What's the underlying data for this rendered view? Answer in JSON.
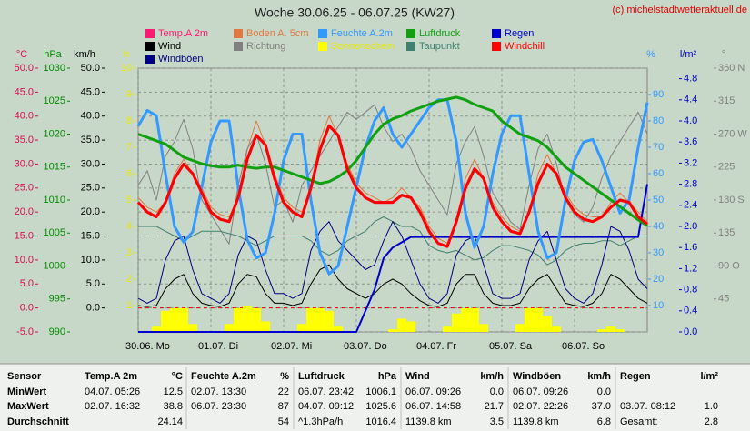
{
  "chart_data": {
    "type": "line",
    "title": "Woche 30.06.25 - 06.07.25 (KW27)",
    "credit": "(c) michelstadtwetteraktuell.de",
    "x": [
      0,
      3,
      6,
      9,
      12,
      15,
      18,
      21,
      24,
      27,
      30,
      33,
      36,
      39,
      42,
      45,
      48,
      51,
      54,
      57,
      60,
      63,
      66,
      69,
      72,
      75,
      78,
      81,
      84,
      87,
      90,
      93,
      96,
      99,
      102,
      105,
      108,
      111,
      114,
      117,
      120,
      123,
      126,
      129,
      132,
      135,
      138,
      141,
      144,
      147,
      150,
      153,
      156,
      159,
      162,
      165,
      168
    ],
    "xlim": [
      0,
      168
    ],
    "xticks": [
      {
        "value": 0,
        "label": "30.06. Mo"
      },
      {
        "value": 24,
        "label": "01.07. Di"
      },
      {
        "value": 48,
        "label": "02.07. Mi"
      },
      {
        "value": 72,
        "label": "03.07. Do"
      },
      {
        "value": 96,
        "label": "04.07. Fr"
      },
      {
        "value": 120,
        "label": "05.07. Sa"
      },
      {
        "value": 144,
        "label": "06.07. So"
      }
    ],
    "grid": true,
    "axes": [
      {
        "label": "°C",
        "color": "#d81050",
        "lim": [
          -5,
          50
        ],
        "ticks": [
          {
            "value": -5,
            "label": "-5.0"
          },
          {
            "value": 0,
            "label": "0.0"
          },
          {
            "value": 5,
            "label": "5.0"
          },
          {
            "value": 10,
            "label": "10.0"
          },
          {
            "value": 15,
            "label": "15.0"
          },
          {
            "value": 20,
            "label": "20.0"
          },
          {
            "value": 25,
            "label": "25.0"
          },
          {
            "value": 30,
            "label": "30.0"
          },
          {
            "value": 35,
            "label": "35.0"
          },
          {
            "value": 40,
            "label": "40.0"
          },
          {
            "value": 45,
            "label": "45.0"
          },
          {
            "value": 50,
            "label": "50.0"
          }
        ]
      },
      {
        "label": "hPa",
        "color": "#008c00",
        "lim": [
          990,
          1030
        ],
        "ticks": [
          990,
          995,
          1000,
          1005,
          1010,
          1015,
          1020,
          1025,
          1030
        ]
      },
      {
        "label": "km/h",
        "color": "#000000",
        "lim": [
          -5,
          50
        ],
        "ticks": [
          {
            "value": 0,
            "label": "0.0"
          },
          {
            "value": 5,
            "label": "5.0"
          },
          {
            "value": 10,
            "label": "10.0"
          },
          {
            "value": 15,
            "label": "15.0"
          },
          {
            "value": 20,
            "label": "20.0"
          },
          {
            "value": 25,
            "label": "25.0"
          },
          {
            "value": 30,
            "label": "30.0"
          },
          {
            "value": 35,
            "label": "35.0"
          },
          {
            "value": 40,
            "label": "40.0"
          },
          {
            "value": 45,
            "label": "45.0"
          },
          {
            "value": 50,
            "label": "50.0"
          }
        ]
      },
      {
        "label": "h",
        "color": "#e8e800",
        "lim": [
          0,
          10
        ],
        "ticks": [
          1,
          2,
          3,
          4,
          5,
          6,
          7,
          8,
          9,
          10
        ]
      },
      {
        "label": "%",
        "color": "#3399ff",
        "lim": [
          0,
          100
        ],
        "ticks": [
          10,
          20,
          30,
          40,
          50,
          60,
          70,
          80,
          90
        ]
      },
      {
        "label": "l/m²",
        "color": "#0000cc",
        "lim": [
          0,
          5
        ],
        "ticks": [
          {
            "value": 0,
            "label": "0.0"
          },
          0.4,
          0.8,
          1.2,
          1.6,
          {
            "value": 2,
            "label": "2.0"
          },
          2.4,
          2.8,
          3.2,
          3.6,
          {
            "value": 4,
            "label": "4.0"
          },
          4.4,
          4.8
        ]
      },
      {
        "label": "°",
        "color": "#808080",
        "lim": [
          0,
          360
        ],
        "ticks": [
          45,
          {
            "value": 90,
            "label": "90 O"
          },
          135,
          {
            "value": 180,
            "label": "180 S"
          },
          225,
          {
            "value": 270,
            "label": "270 W"
          },
          315,
          {
            "value": 360,
            "label": "360 N"
          }
        ]
      }
    ],
    "series": [
      {
        "name": "Temp.A 2m",
        "color": "#ff1a75",
        "axis": 0,
        "line_width": 3,
        "values": [
          22,
          20,
          19,
          22,
          27,
          30,
          28,
          24,
          20,
          18.5,
          18,
          23,
          31,
          36,
          34,
          27,
          22,
          20,
          19,
          25,
          33,
          38,
          36,
          29,
          25,
          23,
          22,
          22,
          22,
          23.5,
          23,
          20,
          16,
          13.5,
          12.8,
          18,
          25,
          29,
          27,
          21,
          18,
          16,
          15.5,
          20,
          26,
          30,
          28,
          23,
          20,
          18.5,
          18,
          19,
          21,
          22.5,
          22,
          19,
          17.5
        ]
      },
      {
        "name": "Boden A. 5cm",
        "color": "#e07840",
        "axis": 0,
        "line_width": 1,
        "values": [
          23,
          21,
          20,
          22,
          28,
          31,
          28,
          25,
          21,
          19.5,
          19,
          23,
          33,
          39,
          34,
          28,
          23,
          21,
          20,
          25,
          35,
          40,
          36,
          30,
          26,
          24,
          23,
          22,
          23,
          25,
          23,
          21,
          17,
          14.5,
          13.5,
          18,
          27,
          31,
          27,
          22,
          19,
          17,
          16,
          20,
          28,
          32,
          28,
          24,
          21,
          19.5,
          19,
          19,
          22,
          24,
          22,
          20,
          18
        ]
      },
      {
        "name": "Feuchte A.2m",
        "color": "#3399ff",
        "axis": 4,
        "line_width": 3,
        "values": [
          78,
          84,
          82,
          60,
          40,
          34,
          38,
          55,
          72,
          80,
          80,
          55,
          35,
          28,
          30,
          45,
          65,
          75,
          75,
          50,
          30,
          22,
          25,
          40,
          55,
          70,
          80,
          85,
          75,
          70,
          75,
          80,
          85,
          88,
          88,
          72,
          45,
          32,
          40,
          60,
          75,
          82,
          82,
          60,
          38,
          28,
          30,
          50,
          65,
          72,
          73,
          65,
          55,
          45,
          50,
          70,
          87
        ]
      },
      {
        "name": "Luftdruck",
        "color": "#10a010",
        "axis": 1,
        "line_width": 3,
        "values": [
          1020,
          1019.5,
          1019,
          1018.5,
          1017.5,
          1016.5,
          1016,
          1015.5,
          1015.2,
          1015,
          1015,
          1015.3,
          1015,
          1014.8,
          1015,
          1015,
          1014.5,
          1014,
          1013.5,
          1013,
          1012.5,
          1012.8,
          1013.5,
          1014.5,
          1016,
          1018,
          1020,
          1021.5,
          1022.3,
          1022.8,
          1023.5,
          1024,
          1024.5,
          1025,
          1025.3,
          1025.6,
          1025.2,
          1024.5,
          1024,
          1023.5,
          1022,
          1021,
          1020,
          1019.5,
          1019,
          1018,
          1016.5,
          1015,
          1014,
          1013,
          1012,
          1011,
          1010,
          1009,
          1008,
          1007,
          1006.1
        ]
      },
      {
        "name": "Regen",
        "color": "#0000cc",
        "axis": 5,
        "line_width": 2,
        "values": [
          0,
          0,
          0,
          0,
          0,
          0,
          0,
          0,
          0,
          0,
          0,
          0,
          0,
          0,
          0,
          0,
          0,
          0,
          0,
          0,
          0,
          0,
          0,
          0,
          0,
          0.4,
          0.8,
          1.4,
          1.6,
          1.7,
          1.8,
          1.8,
          1.8,
          1.8,
          1.8,
          1.8,
          1.8,
          1.8,
          1.8,
          1.8,
          1.8,
          1.8,
          1.8,
          1.8,
          1.8,
          1.8,
          1.8,
          1.8,
          1.8,
          1.8,
          1.8,
          1.8,
          1.8,
          1.8,
          1.8,
          1.8,
          2.8
        ]
      },
      {
        "name": "Wind",
        "color": "#000000",
        "axis": 2,
        "line_width": 1,
        "values": [
          0.5,
          0.3,
          0.5,
          4,
          6,
          7,
          3,
          1,
          0.5,
          0.3,
          1,
          5,
          7,
          6.5,
          3,
          1,
          1,
          0.5,
          1,
          5,
          8,
          9,
          6,
          4,
          3,
          2,
          3,
          5,
          6,
          5,
          3,
          1.5,
          0.5,
          0.3,
          1,
          5,
          7,
          7,
          3,
          1,
          0.5,
          0.5,
          1,
          4,
          6,
          7,
          4,
          1,
          0.5,
          0.3,
          1,
          3,
          7,
          6,
          4,
          2,
          1
        ]
      },
      {
        "name": "Richtung",
        "color": "#808080",
        "axis": 6,
        "line_width": 1,
        "values": [
          200,
          220,
          180,
          240,
          260,
          290,
          250,
          180,
          160,
          140,
          120,
          200,
          250,
          270,
          230,
          170,
          180,
          150,
          200,
          220,
          240,
          260,
          280,
          300,
          290,
          300,
          310,
          280,
          260,
          270,
          250,
          220,
          200,
          180,
          160,
          230,
          260,
          280,
          240,
          190,
          170,
          150,
          140,
          200,
          250,
          270,
          230,
          180,
          160,
          150,
          170,
          210,
          240,
          260,
          280,
          300,
          270
        ]
      },
      {
        "name": "Sonnenschein",
        "color": "#ffff00",
        "axis": 3,
        "mark": "bar",
        "values": [
          0,
          0,
          0.2,
          0.8,
          0.9,
          0.9,
          0.3,
          0,
          0,
          0,
          0.3,
          0.9,
          1,
          0.9,
          0.4,
          0,
          0,
          0,
          0.3,
          0.9,
          0.9,
          0.8,
          0.2,
          0,
          0,
          0,
          0,
          0,
          0.1,
          0.5,
          0.4,
          0,
          0,
          0,
          0.2,
          0.7,
          0.9,
          0.9,
          0.3,
          0,
          0,
          0,
          0.3,
          0.9,
          0.9,
          0.6,
          0.2,
          0,
          0,
          0,
          0,
          0.1,
          0.2,
          0.1,
          0,
          0,
          0
        ]
      },
      {
        "name": "Taupunkt",
        "color": "#408070",
        "axis": 0,
        "line_width": 1,
        "values": [
          17,
          17,
          17,
          16,
          15,
          14,
          15,
          16,
          16,
          16,
          15.5,
          15,
          14,
          13,
          14,
          15,
          15,
          15,
          15,
          14,
          12,
          11,
          12,
          14,
          15,
          16,
          18,
          19,
          18,
          17,
          17,
          16,
          13,
          12,
          11.5,
          12,
          11,
          10,
          10.5,
          12,
          13,
          13,
          12.5,
          12,
          11,
          9,
          10,
          12,
          13,
          13.5,
          13.5,
          14,
          14,
          13,
          14,
          15,
          15
        ]
      },
      {
        "name": "Windchill",
        "color": "#ff0000",
        "axis": 0,
        "line_width": 3,
        "values": [
          22,
          20,
          19,
          22,
          27,
          30,
          28,
          24,
          20,
          18.5,
          18,
          23,
          31,
          36,
          34,
          27,
          22,
          20,
          19,
          25,
          33,
          38,
          36,
          29,
          25,
          23,
          22,
          22,
          22,
          23.5,
          23,
          20,
          16,
          13.5,
          12.8,
          18,
          25,
          29,
          27,
          21,
          18,
          16,
          15.5,
          20,
          26,
          30,
          28,
          23,
          20,
          18.5,
          18,
          19,
          21,
          22.5,
          22,
          19,
          17.5
        ]
      },
      {
        "name": "Windböen",
        "color": "#000080",
        "axis": 2,
        "line_width": 1,
        "values": [
          2,
          1,
          2,
          10,
          14,
          15,
          8,
          3,
          2,
          1,
          3,
          11,
          15,
          14,
          8,
          3,
          3,
          2,
          3,
          12,
          16,
          18,
          14,
          12,
          10,
          8,
          9,
          14,
          18,
          15,
          10,
          5,
          2,
          1,
          3,
          11,
          14,
          15,
          9,
          3,
          2,
          2,
          3,
          10,
          14,
          16,
          10,
          4,
          2,
          1,
          3,
          9,
          17,
          16,
          12,
          6,
          4
        ]
      }
    ]
  },
  "table": {
    "corner": "Sensor",
    "columns": [
      {
        "name": "Temp.A 2m",
        "unit": "°C"
      },
      {
        "name": "Feuchte A.2m",
        "unit": "%"
      },
      {
        "name": "Luftdruck",
        "unit": "hPa"
      },
      {
        "name": "Wind",
        "unit": "km/h"
      },
      {
        "name": "Windböen",
        "unit": "km/h"
      },
      {
        "name": "Regen",
        "unit": "l/m²"
      }
    ],
    "rows": [
      {
        "label": "MinWert",
        "cells": [
          [
            "04.07.  05:26",
            "12.5"
          ],
          [
            "02.07.  13:30",
            "22"
          ],
          [
            "06.07.  23:42",
            "1006.1"
          ],
          [
            "06.07.  09:26",
            "0.0"
          ],
          [
            "06.07.  09:26",
            "0.0"
          ],
          null
        ]
      },
      {
        "label": "MaxWert",
        "cells": [
          [
            "02.07.  16:32",
            "38.8"
          ],
          [
            "06.07.  23:30",
            "87"
          ],
          [
            "04.07.  09:12",
            "1025.6"
          ],
          [
            "06.07.  14:58",
            "21.7"
          ],
          [
            "02.07.  22:26",
            "37.0"
          ],
          [
            "03.07.  08:12",
            "1.0"
          ]
        ]
      },
      {
        "label": "Durchschnitt",
        "cells": [
          [
            null,
            "24.14"
          ],
          [
            null,
            "54"
          ],
          [
            "^1.3hPa/h",
            "1016.4"
          ],
          [
            "1139.8 km",
            "3.5"
          ],
          [
            "1139.8 km",
            "6.8"
          ],
          [
            "Gesamt:",
            "2.8"
          ]
        ]
      }
    ]
  }
}
